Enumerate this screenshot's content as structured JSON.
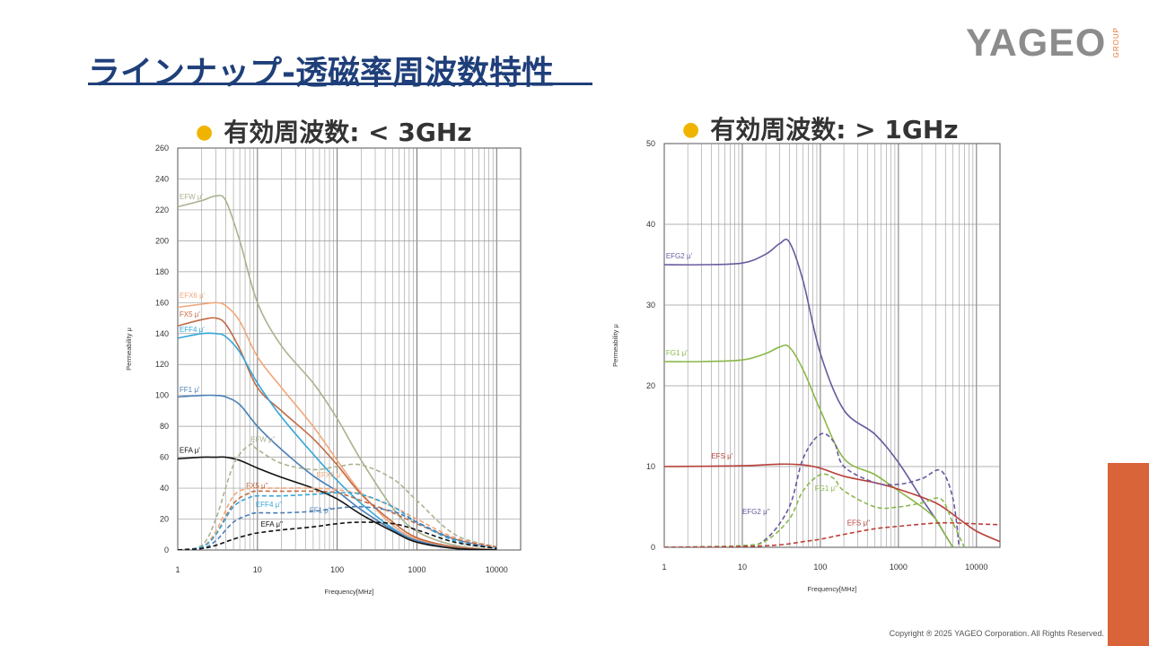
{
  "slide": {
    "title": "ラインナップ-透磁率周波数特性",
    "logo_text": "YAGEO",
    "logo_sub": "GROUP",
    "copyright": "Copyright ® 2025 YAGEO Corporation. All Rights Reserved."
  },
  "colors": {
    "title": "#1f3f7a",
    "accent": "#d9643a",
    "bullet": "#f0b400"
  },
  "chart_data": [
    {
      "type": "line",
      "heading": "有効周波数: < 3GHz",
      "xlabel": "Frequency[MHz]",
      "ylabel": "Permeability μ",
      "xscale": "log",
      "xlim": [
        1,
        20000
      ],
      "ylim": [
        0,
        260
      ],
      "xticks": [
        "1",
        "10",
        "100",
        "1000",
        "10000"
      ],
      "yticks": [
        "0",
        "20",
        "40",
        "60",
        "80",
        "100",
        "120",
        "140",
        "160",
        "180",
        "200",
        "220",
        "240",
        "260"
      ],
      "grid": true,
      "series": [
        {
          "name": "EFW μ'",
          "color": "#a8b38f",
          "dash": false,
          "x": [
            1,
            2,
            3,
            4,
            6,
            10,
            20,
            50,
            100,
            200,
            500,
            1000,
            3000,
            10000
          ],
          "y": [
            222,
            226,
            229,
            226,
            200,
            160,
            132,
            108,
            85,
            58,
            27,
            12,
            3,
            0
          ]
        },
        {
          "name": "EFX6 μ'",
          "color": "#f2a77a",
          "dash": false,
          "x": [
            1,
            2,
            3,
            4,
            6,
            10,
            20,
            50,
            100,
            200,
            500,
            1000,
            3000,
            10000
          ],
          "y": [
            157,
            159,
            160,
            158,
            148,
            125,
            105,
            80,
            58,
            37,
            16,
            7,
            2,
            0
          ]
        },
        {
          "name": "FX5 μ'",
          "color": "#c26b45",
          "dash": false,
          "x": [
            1,
            2,
            3,
            4,
            6,
            10,
            20,
            50,
            100,
            200,
            500,
            1000,
            3000,
            10000
          ],
          "y": [
            145,
            149,
            150,
            146,
            130,
            105,
            90,
            72,
            55,
            36,
            18,
            8,
            2,
            0
          ]
        },
        {
          "name": "EFF4 μ'",
          "color": "#34a6d8",
          "dash": false,
          "x": [
            1,
            2,
            3,
            4,
            6,
            10,
            20,
            50,
            100,
            200,
            500,
            1000,
            3000,
            10000
          ],
          "y": [
            137,
            140,
            140,
            138,
            128,
            108,
            86,
            62,
            45,
            30,
            14,
            6,
            1,
            0
          ]
        },
        {
          "name": "FF1 μ'",
          "color": "#4a7fb5",
          "dash": false,
          "x": [
            1,
            2,
            3,
            4,
            6,
            10,
            20,
            50,
            100,
            200,
            500,
            1000,
            3000,
            10000
          ],
          "y": [
            99,
            100,
            100,
            99,
            94,
            80,
            65,
            48,
            38,
            26,
            13,
            6,
            1,
            0
          ]
        },
        {
          "name": "EFA μ'",
          "color": "#111111",
          "dash": false,
          "x": [
            1,
            2,
            3,
            4,
            6,
            10,
            20,
            50,
            100,
            200,
            500,
            1000,
            3000,
            10000
          ],
          "y": [
            59,
            60,
            60,
            60,
            58,
            53,
            47,
            40,
            33,
            23,
            12,
            5,
            1,
            0
          ]
        },
        {
          "name": "EFW μ''",
          "color": "#a8b38f",
          "dash": true,
          "x": [
            1,
            2,
            3,
            5,
            8,
            10,
            20,
            50,
            100,
            200,
            500,
            1000,
            3000,
            10000
          ],
          "y": [
            0,
            3,
            20,
            55,
            68,
            65,
            56,
            52,
            54,
            55,
            46,
            32,
            10,
            2
          ]
        },
        {
          "name": "EFX6 μ''",
          "color": "#f2a77a",
          "dash": true,
          "x": [
            1,
            2,
            3,
            5,
            8,
            10,
            20,
            50,
            100,
            200,
            500,
            1000,
            3000,
            10000
          ],
          "y": [
            0,
            2,
            12,
            35,
            40,
            40,
            40,
            40,
            39,
            36,
            28,
            20,
            8,
            2
          ]
        },
        {
          "name": "FX5 μ''",
          "color": "#c26b45",
          "dash": true,
          "x": [
            1,
            2,
            3,
            5,
            8,
            10,
            20,
            50,
            100,
            200,
            500,
            1000,
            3000,
            10000
          ],
          "y": [
            0,
            2,
            10,
            30,
            37,
            38,
            38,
            38,
            37,
            32,
            24,
            17,
            7,
            2
          ]
        },
        {
          "name": "EFF4 μ''",
          "color": "#34a6d8",
          "dash": true,
          "x": [
            1,
            2,
            3,
            5,
            8,
            10,
            20,
            50,
            100,
            200,
            500,
            1000,
            3000,
            10000
          ],
          "y": [
            0,
            2,
            10,
            28,
            34,
            35,
            35,
            36,
            37,
            36,
            28,
            18,
            6,
            1
          ]
        },
        {
          "name": "FF1 μ''",
          "color": "#4a7fb5",
          "dash": true,
          "x": [
            1,
            2,
            3,
            5,
            8,
            10,
            20,
            50,
            100,
            200,
            500,
            1000,
            3000,
            10000
          ],
          "y": [
            0,
            1,
            6,
            18,
            23,
            24,
            24,
            25,
            27,
            28,
            25,
            18,
            7,
            1
          ]
        },
        {
          "name": "EFA μ''",
          "color": "#111111",
          "dash": true,
          "x": [
            1,
            2,
            3,
            5,
            8,
            10,
            20,
            50,
            100,
            200,
            500,
            1000,
            3000,
            10000
          ],
          "y": [
            0,
            1,
            3,
            7,
            10,
            11,
            13,
            15,
            17,
            18,
            17,
            13,
            5,
            1
          ]
        }
      ],
      "labels": [
        {
          "text": "EFW μ'",
          "color": "#a8b38f",
          "x": 1.05,
          "y": 227
        },
        {
          "text": "EFX6 μ'",
          "color": "#f2a77a",
          "x": 1.05,
          "y": 163
        },
        {
          "text": "FX5 μ'",
          "color": "#c26b45",
          "x": 1.05,
          "y": 151
        },
        {
          "text": "EFF4 μ'",
          "color": "#34a6d8",
          "x": 1.05,
          "y": 141
        },
        {
          "text": "FF1 μ'",
          "color": "#4a7fb5",
          "x": 1.05,
          "y": 102
        },
        {
          "text": "EFA μ'",
          "color": "#111111",
          "x": 1.05,
          "y": 63
        },
        {
          "text": "EFW μ''",
          "color": "#a8b38f",
          "x": 8.2,
          "y": 70
        },
        {
          "text": "EFX6 μ''",
          "color": "#f2a77a",
          "x": 55,
          "y": 47
        },
        {
          "text": "FX5 μ''",
          "color": "#c26b45",
          "x": 7.2,
          "y": 40
        },
        {
          "text": "EFF4 μ''",
          "color": "#34a6d8",
          "x": 9.5,
          "y": 28
        },
        {
          "text": "FF1 μ''",
          "color": "#4a7fb5",
          "x": 45,
          "y": 24
        },
        {
          "text": "EFA μ''",
          "color": "#111111",
          "x": 11,
          "y": 15
        }
      ]
    },
    {
      "type": "line",
      "heading": "有効周波数: > 1GHz",
      "xlabel": "Frequency[MHz]",
      "ylabel": "Permeability μ",
      "xscale": "log",
      "xlim": [
        1,
        20000
      ],
      "ylim": [
        0,
        50
      ],
      "xticks": [
        "1",
        "10",
        "100",
        "1000",
        "10000"
      ],
      "yticks": [
        "0",
        "10",
        "20",
        "30",
        "40",
        "50"
      ],
      "grid": true,
      "series": [
        {
          "name": "EFG2 μ'",
          "color": "#6a5a9e",
          "dash": false,
          "x": [
            1,
            3,
            10,
            20,
            30,
            40,
            60,
            100,
            200,
            500,
            1000,
            2000,
            3000,
            4000,
            5000
          ],
          "y": [
            35,
            35,
            35.2,
            36.3,
            37.6,
            37.8,
            33,
            24,
            17,
            14,
            10.5,
            6,
            3.5,
            1.5,
            0
          ]
        },
        {
          "name": "FG1 μ'",
          "color": "#8ab84a",
          "dash": false,
          "x": [
            1,
            3,
            10,
            20,
            30,
            40,
            60,
            100,
            200,
            500,
            1000,
            2000,
            3000,
            4000,
            5000
          ],
          "y": [
            23,
            23,
            23.2,
            24,
            24.8,
            24.8,
            22,
            17,
            11,
            9,
            7,
            5,
            3.5,
            1.5,
            0
          ]
        },
        {
          "name": "EFS μ'",
          "color": "#b9403a",
          "dash": false,
          "x": [
            1,
            10,
            30,
            60,
            100,
            200,
            500,
            1000,
            3000,
            6000,
            10000,
            20000
          ],
          "y": [
            10,
            10.1,
            10.3,
            10.2,
            9.8,
            8.8,
            8,
            7.2,
            5.5,
            3.5,
            2,
            0.7
          ]
        },
        {
          "name": "EFG2 μ''",
          "color": "#6a5a9e",
          "dash": true,
          "x": [
            1,
            10,
            20,
            40,
            60,
            100,
            150,
            200,
            500,
            1000,
            2000,
            3500,
            5000,
            6000
          ],
          "y": [
            0,
            0.2,
            1,
            5,
            11,
            14,
            13,
            10,
            8,
            7.8,
            8.5,
            9.5,
            6,
            0
          ]
        },
        {
          "name": "FG1 μ''",
          "color": "#8ab84a",
          "dash": true,
          "x": [
            1,
            10,
            20,
            40,
            60,
            100,
            150,
            200,
            500,
            1000,
            2000,
            3500,
            5000,
            7000
          ],
          "y": [
            0,
            0.2,
            0.8,
            3.5,
            7,
            9,
            8.5,
            7,
            5,
            5,
            5.5,
            6,
            3,
            0
          ]
        },
        {
          "name": "EFS μ''",
          "color": "#b9403a",
          "dash": true,
          "x": [
            1,
            10,
            30,
            60,
            100,
            200,
            500,
            1000,
            3000,
            6000,
            10000,
            20000
          ],
          "y": [
            0,
            0.1,
            0.3,
            0.7,
            1,
            1.6,
            2.3,
            2.6,
            3,
            3,
            2.9,
            2.8
          ]
        }
      ],
      "labels": [
        {
          "text": "EFG2 μ'",
          "color": "#6a5a9e",
          "x": 1.05,
          "y": 35.8
        },
        {
          "text": "FG1 μ'",
          "color": "#8ab84a",
          "x": 1.05,
          "y": 23.8
        },
        {
          "text": "EFS μ'",
          "color": "#b9403a",
          "x": 4,
          "y": 11
        },
        {
          "text": "EFG2 μ''",
          "color": "#6a5a9e",
          "x": 10,
          "y": 4.1
        },
        {
          "text": "FG1 μ''",
          "color": "#8ab84a",
          "x": 85,
          "y": 7
        },
        {
          "text": "EFS μ''",
          "color": "#b9403a",
          "x": 220,
          "y": 2.7
        }
      ]
    }
  ]
}
